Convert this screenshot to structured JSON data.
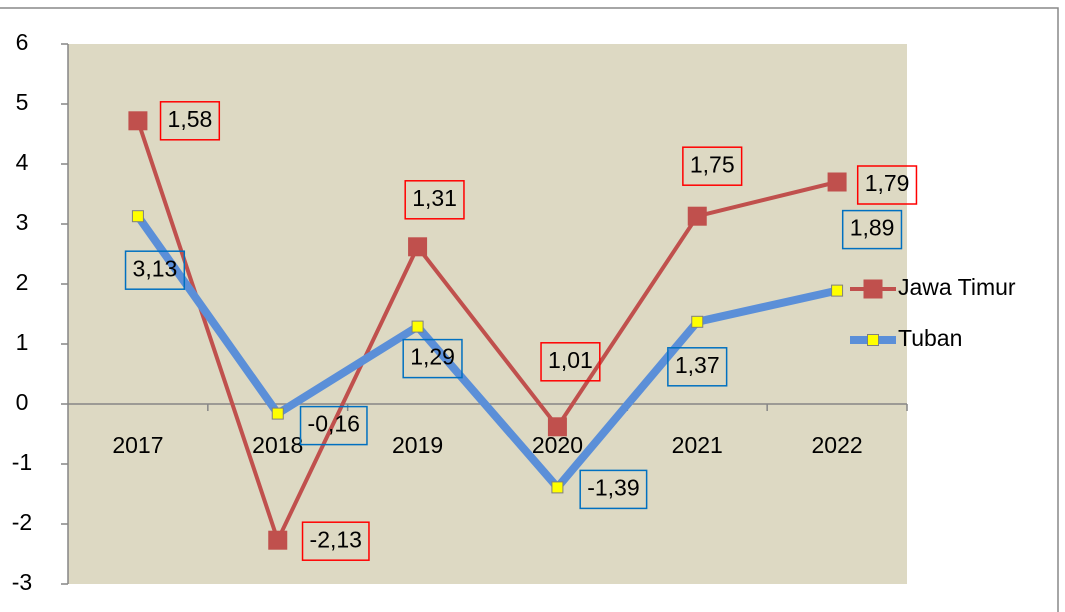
{
  "chart_data": {
    "type": "line",
    "categories": [
      "2017",
      "2018",
      "2019",
      "2020",
      "2021",
      "2022"
    ],
    "series": [
      {
        "name": "Jawa Timur",
        "color": "#c0504d",
        "values": [
          4.72,
          -2.27,
          2.62,
          -0.38,
          3.13,
          3.7
        ],
        "annotations": [
          "1,58",
          "-2,13",
          "1,31",
          "1,01",
          "1,75",
          "1,79"
        ]
      },
      {
        "name": "Tuban",
        "color": "#5b8fd8",
        "values": [
          3.13,
          -0.16,
          1.29,
          -1.39,
          1.37,
          1.89
        ],
        "value_labels": [
          "3,13",
          "-0,16",
          "1,29",
          "-1,39",
          "1,37",
          "1,89"
        ]
      }
    ],
    "ylim": [
      -3,
      6
    ],
    "yticks": [
      -3,
      -2,
      -1,
      0,
      1,
      2,
      3,
      4,
      5,
      6
    ],
    "legend": "right"
  }
}
